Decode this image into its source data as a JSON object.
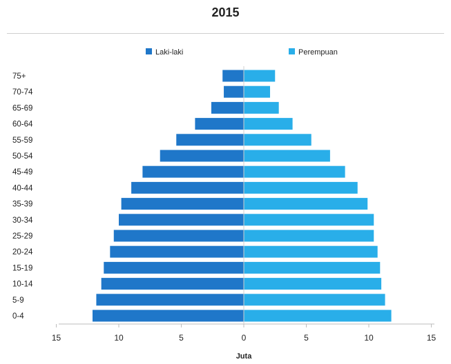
{
  "chart_data": {
    "type": "bar",
    "title": "2015",
    "xlabel": "Juta",
    "ylabel": "",
    "xlim": [
      -15,
      15
    ],
    "x_ticks": [
      "15",
      "10",
      "5",
      "0",
      "5",
      "10",
      "15"
    ],
    "x_tick_values": [
      -15,
      -10,
      -5,
      0,
      5,
      10,
      15
    ],
    "legend_position": "top",
    "grid": false,
    "categories": [
      "75+",
      "70-74",
      "65-69",
      "60-64",
      "55-59",
      "50-54",
      "45-49",
      "40-44",
      "35-39",
      "30-34",
      "25-29",
      "20-24",
      "15-19",
      "10-14",
      "5-9",
      "0-4"
    ],
    "series": [
      {
        "name": "Laki-laki",
        "color": "#1f77c9",
        "values": [
          1.7,
          1.6,
          2.6,
          3.9,
          5.4,
          6.7,
          8.1,
          9.0,
          9.8,
          10.0,
          10.4,
          10.7,
          11.2,
          11.4,
          11.8,
          12.1
        ]
      },
      {
        "name": "Perempuan",
        "color": "#29aee9",
        "values": [
          2.5,
          2.1,
          2.8,
          3.9,
          5.4,
          6.9,
          8.1,
          9.1,
          9.9,
          10.4,
          10.4,
          10.7,
          10.9,
          11.0,
          11.3,
          11.8
        ]
      }
    ]
  }
}
